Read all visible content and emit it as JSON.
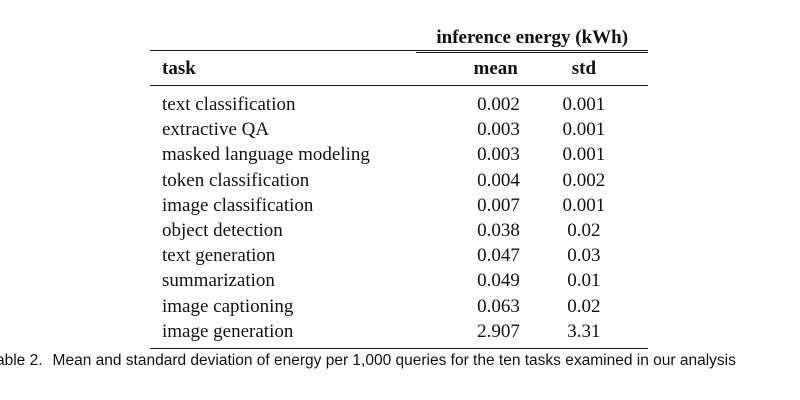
{
  "table": {
    "group_header": "inference energy (kWh)",
    "columns": [
      "task",
      "mean",
      "std"
    ],
    "rows": [
      {
        "task": "text classification",
        "mean": "0.002",
        "std": "0.001"
      },
      {
        "task": "extractive QA",
        "mean": "0.003",
        "std": "0.001"
      },
      {
        "task": "masked language modeling",
        "mean": "0.003",
        "std": "0.001"
      },
      {
        "task": "token classification",
        "mean": "0.004",
        "std": "0.002"
      },
      {
        "task": "image classification",
        "mean": "0.007",
        "std": "0.001"
      },
      {
        "task": "object detection",
        "mean": "0.038",
        "std": "0.02"
      },
      {
        "task": "text generation",
        "mean": "0.047",
        "std": "0.03"
      },
      {
        "task": "summarization",
        "mean": "0.049",
        "std": "0.01"
      },
      {
        "task": "image captioning",
        "mean": "0.063",
        "std": "0.02"
      },
      {
        "task": "image generation",
        "mean": "2.907",
        "std": "3.31"
      }
    ]
  },
  "caption": {
    "label": "able 2.",
    "text": "Mean and standard deviation of energy per 1,000 queries for the ten tasks examined in our analysis"
  }
}
